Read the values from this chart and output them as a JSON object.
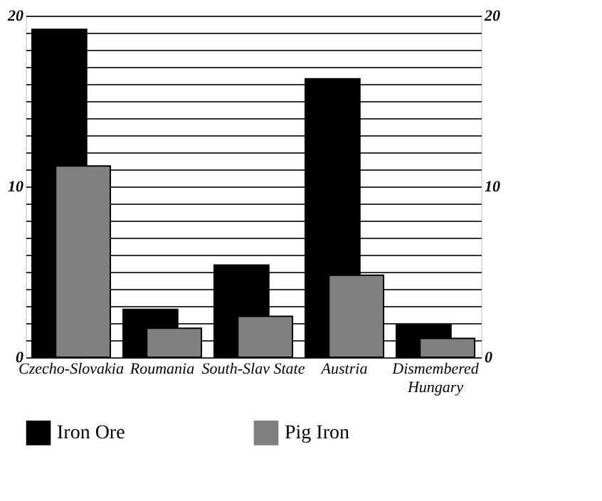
{
  "chart_data": {
    "type": "bar",
    "categories": [
      "Czecho-Slovakia",
      "Roumania",
      "South-Slav State",
      "Austria",
      "Dismembered Hungary"
    ],
    "series": [
      {
        "name": "Iron Ore",
        "color": "#000000",
        "values": [
          19.2,
          2.8,
          5.4,
          16.3,
          1.9
        ]
      },
      {
        "name": "Pig Iron",
        "color": "#808080",
        "values": [
          11.2,
          1.7,
          2.4,
          4.8,
          1.1
        ]
      }
    ],
    "ylim": [
      0,
      20
    ],
    "yticks": [
      0,
      {
        "value": 1,
        "label": null
      },
      {
        "value": 2,
        "label": null
      },
      {
        "value": 3,
        "label": null
      },
      {
        "value": 4,
        "label": null
      },
      {
        "value": 5,
        "label": null
      },
      {
        "value": 6,
        "label": null
      },
      {
        "value": 7,
        "label": null
      },
      {
        "value": 8,
        "label": null
      },
      {
        "value": 9,
        "label": null
      },
      10,
      {
        "value": 11,
        "label": null
      },
      {
        "value": 12,
        "label": null
      },
      {
        "value": 13,
        "label": null
      },
      {
        "value": 14,
        "label": null
      },
      {
        "value": 15,
        "label": null
      },
      {
        "value": 16,
        "label": null
      },
      {
        "value": 17,
        "label": null
      },
      {
        "value": 18,
        "label": null
      },
      {
        "value": 19,
        "label": null
      },
      20
    ],
    "y2lim": [
      0,
      20
    ],
    "y2ticks": [
      0,
      10,
      20
    ],
    "grid": "y",
    "legend": "bottom"
  }
}
